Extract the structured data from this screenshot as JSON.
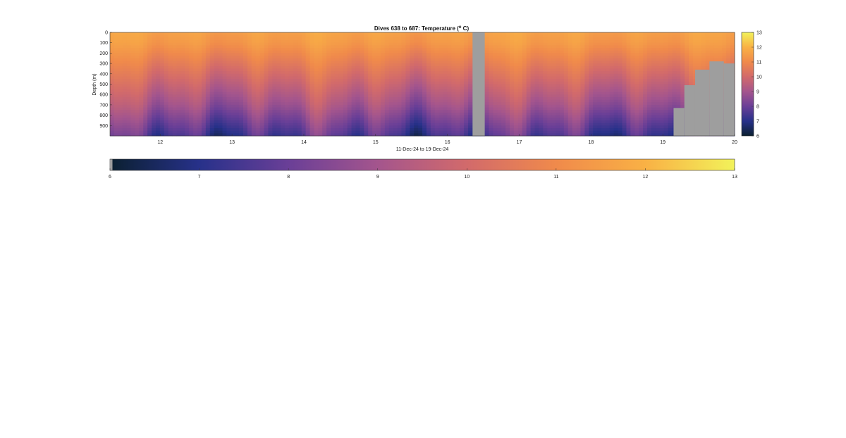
{
  "chart_data": {
    "type": "heatmap",
    "title_main": "Dives 638 to 687: Temperature (",
    "title_sup": "o",
    "title_end": " C)",
    "xlabel": "11-Dec-24 to 19-Dec-24",
    "ylabel": "Depth (m)",
    "xlim": [
      11.3,
      20.0
    ],
    "ylim": [
      0,
      1000
    ],
    "x_ticks": [
      12,
      13,
      14,
      15,
      16,
      17,
      18,
      19,
      20
    ],
    "y_ticks": [
      0,
      100,
      200,
      300,
      400,
      500,
      600,
      700,
      800,
      900
    ],
    "color_range": [
      6,
      13
    ],
    "colorbar_ticks": [
      6,
      7,
      8,
      9,
      10,
      11,
      12,
      13
    ],
    "colormap": [
      "#0b2030",
      "#27318a",
      "#6a3f97",
      "#a4558d",
      "#d26a6b",
      "#f08a4b",
      "#f9b145",
      "#f2f25a"
    ],
    "missing_color": "#9e9e9e",
    "missing_regions": [
      {
        "x0": 16.35,
        "x1": 16.52,
        "depth": 0
      },
      {
        "x0": 19.15,
        "x1": 19.3,
        "depth": 730
      },
      {
        "x0": 19.3,
        "x1": 19.45,
        "depth": 510
      },
      {
        "x0": 19.45,
        "x1": 19.65,
        "depth": 360
      },
      {
        "x0": 19.65,
        "x1": 19.85,
        "depth": 280
      },
      {
        "x0": 19.85,
        "x1": 20.0,
        "depth": 300
      }
    ],
    "profile_depths": [
      0,
      100,
      200,
      300,
      400,
      500,
      600,
      700,
      800,
      900,
      1000
    ],
    "mean_profile": [
      11.6,
      11.4,
      11.0,
      10.6,
      10.2,
      9.8,
      9.4,
      9.0,
      8.5,
      8.0,
      7.5
    ]
  }
}
